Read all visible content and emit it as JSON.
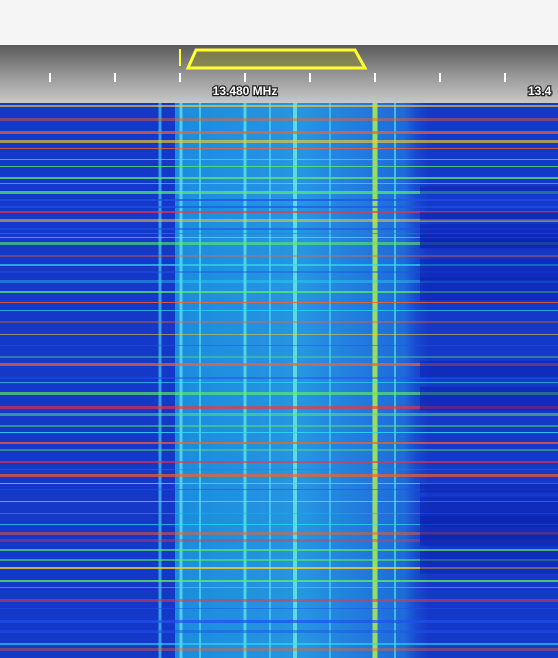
{
  "scale": {
    "labels": [
      "13.480 MHz",
      "13.4"
    ]
  }
}
